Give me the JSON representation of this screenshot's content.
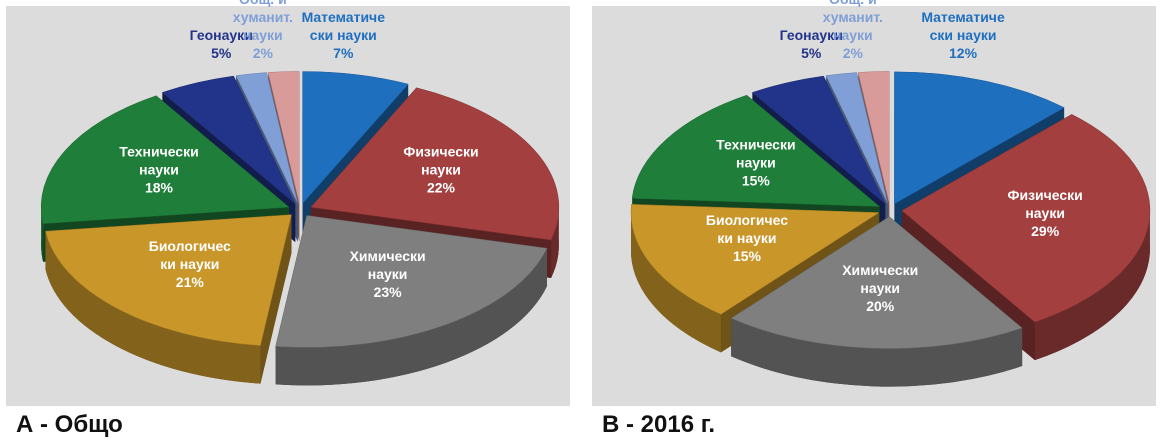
{
  "chart_data": [
    {
      "type": "pie",
      "title": "А - Общо",
      "categories": [
        "Математиче\nски науки",
        "Физически\nнауки",
        "Химически\nнауки",
        "Биологичес\nки науки",
        "Технически\nнауки",
        "Геонауки",
        "Общ. и\nхуманит.\nнауки",
        null
      ],
      "values": [
        7,
        22,
        23,
        21,
        18,
        5,
        2,
        2
      ],
      "value_labels": [
        "7%",
        "22%",
        "23%",
        "21%",
        "18%",
        "5%",
        "2%",
        null
      ],
      "colors": [
        "#1f6fbf",
        "#a3403f",
        "#7f7f7f",
        "#c9962a",
        "#1f7f3a",
        "#22348a",
        "#7f9fd6",
        "#d99a9a"
      ]
    },
    {
      "type": "pie",
      "title": "В - 2016 г.",
      "categories": [
        "Математиче\nски науки",
        "Физически\nнауки",
        "Химически\nнауки",
        "Биологичес\nки науки",
        "Технически\nнауки",
        "Геонауки",
        "Общ. и\nхуманит.\nнауки",
        null
      ],
      "values": [
        12,
        29,
        20,
        15,
        15,
        5,
        2,
        2
      ],
      "value_labels": [
        "12%",
        "29%",
        "20%",
        "15%",
        "15%",
        "5%",
        "2%",
        null
      ],
      "colors": [
        "#1f6fbf",
        "#a3403f",
        "#7f7f7f",
        "#c9962a",
        "#1f7f3a",
        "#22348a",
        "#7f9fd6",
        "#d99a9a"
      ]
    }
  ]
}
